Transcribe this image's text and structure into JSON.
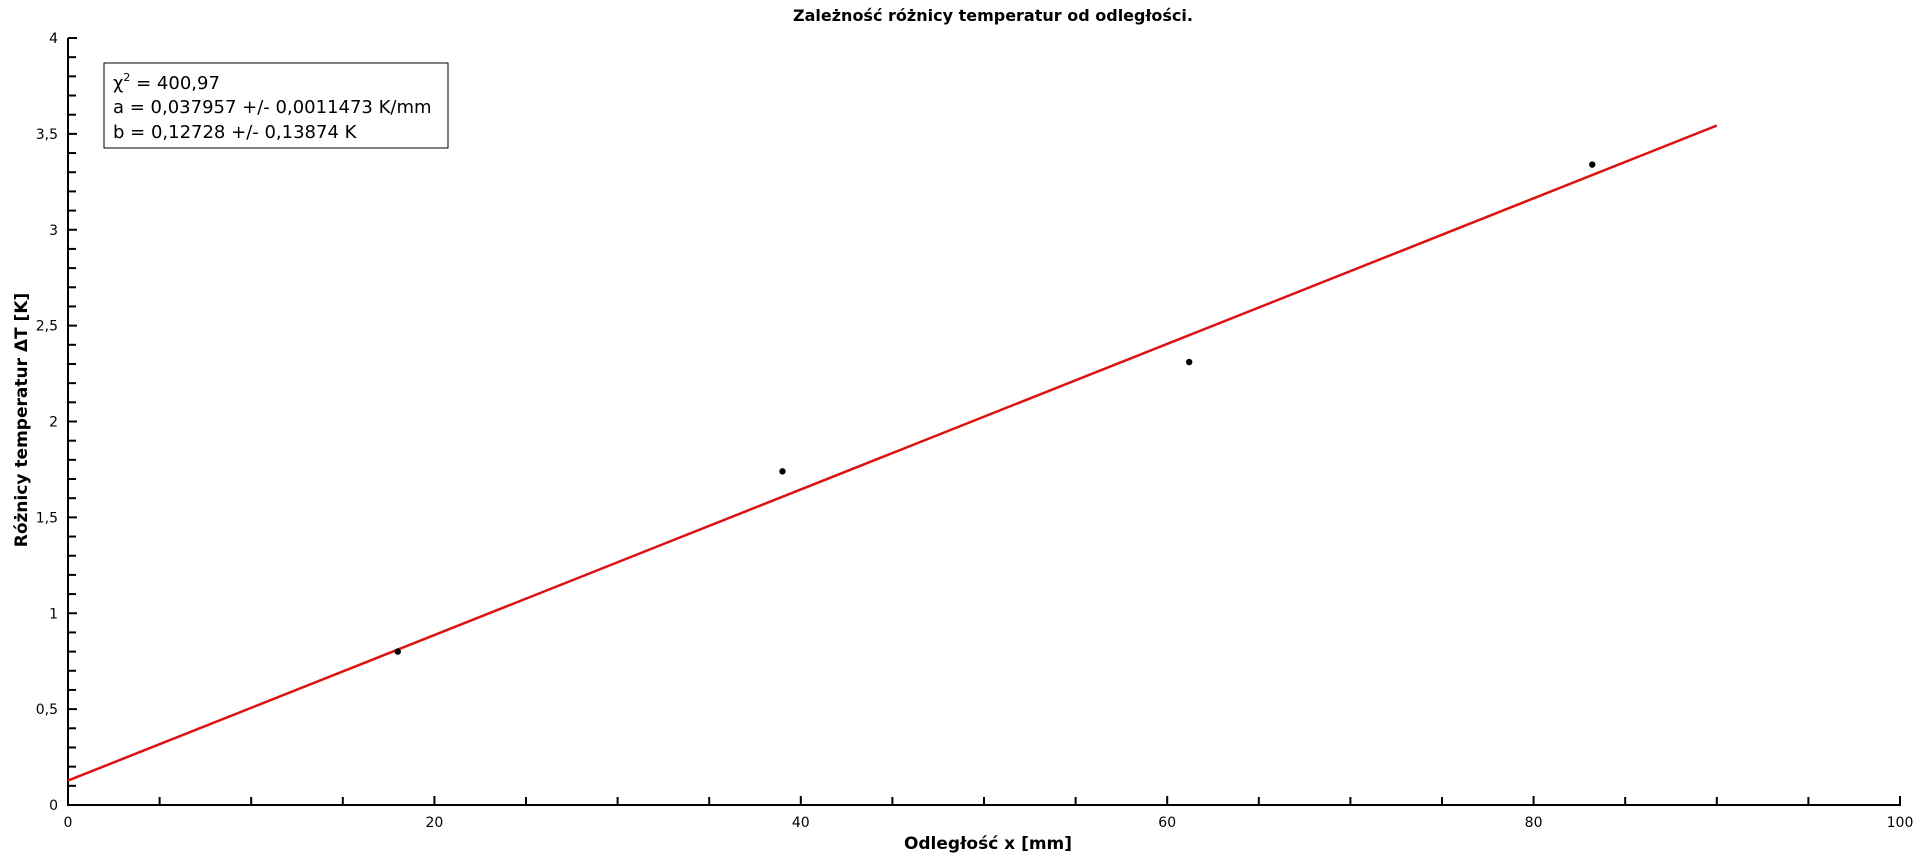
{
  "chart_data": {
    "type": "scatter",
    "title": "Zależność różnicy temperatur od odległości.",
    "xlabel": "Odległość x [mm]",
    "ylabel": "Różnicy temperatur ΔT [K]",
    "xlim": [
      0,
      100
    ],
    "ylim": [
      0,
      4
    ],
    "x_ticks": [
      0,
      20,
      40,
      60,
      80,
      100
    ],
    "x_tick_labels": [
      "0",
      "20",
      "40",
      "60",
      "80",
      "100"
    ],
    "y_ticks": [
      0,
      0.5,
      1,
      1.5,
      2,
      2.5,
      3,
      3.5,
      4
    ],
    "y_tick_labels": [
      "0",
      "0,5",
      "1",
      "1,5",
      "2",
      "2,5",
      "3",
      "3,5",
      "4"
    ],
    "grid": false,
    "points": [
      {
        "x": 18,
        "y": 0.8
      },
      {
        "x": 39,
        "y": 1.74
      },
      {
        "x": 61.2,
        "y": 2.31
      },
      {
        "x": 83.2,
        "y": 3.34
      }
    ],
    "fit": {
      "a": 0.037957,
      "b": 0.12728,
      "x_range": [
        0,
        90
      ],
      "color": "#dd1111"
    },
    "legend": {
      "placement": "top-left",
      "chi_symbol": "χ",
      "chi_sup": "2",
      "chi_value": " = 400,97",
      "line_a": "a = 0,037957 +/- 0,0011473 K/mm",
      "line_b": "b = 0,12728 +/- 0,13874 K"
    }
  }
}
